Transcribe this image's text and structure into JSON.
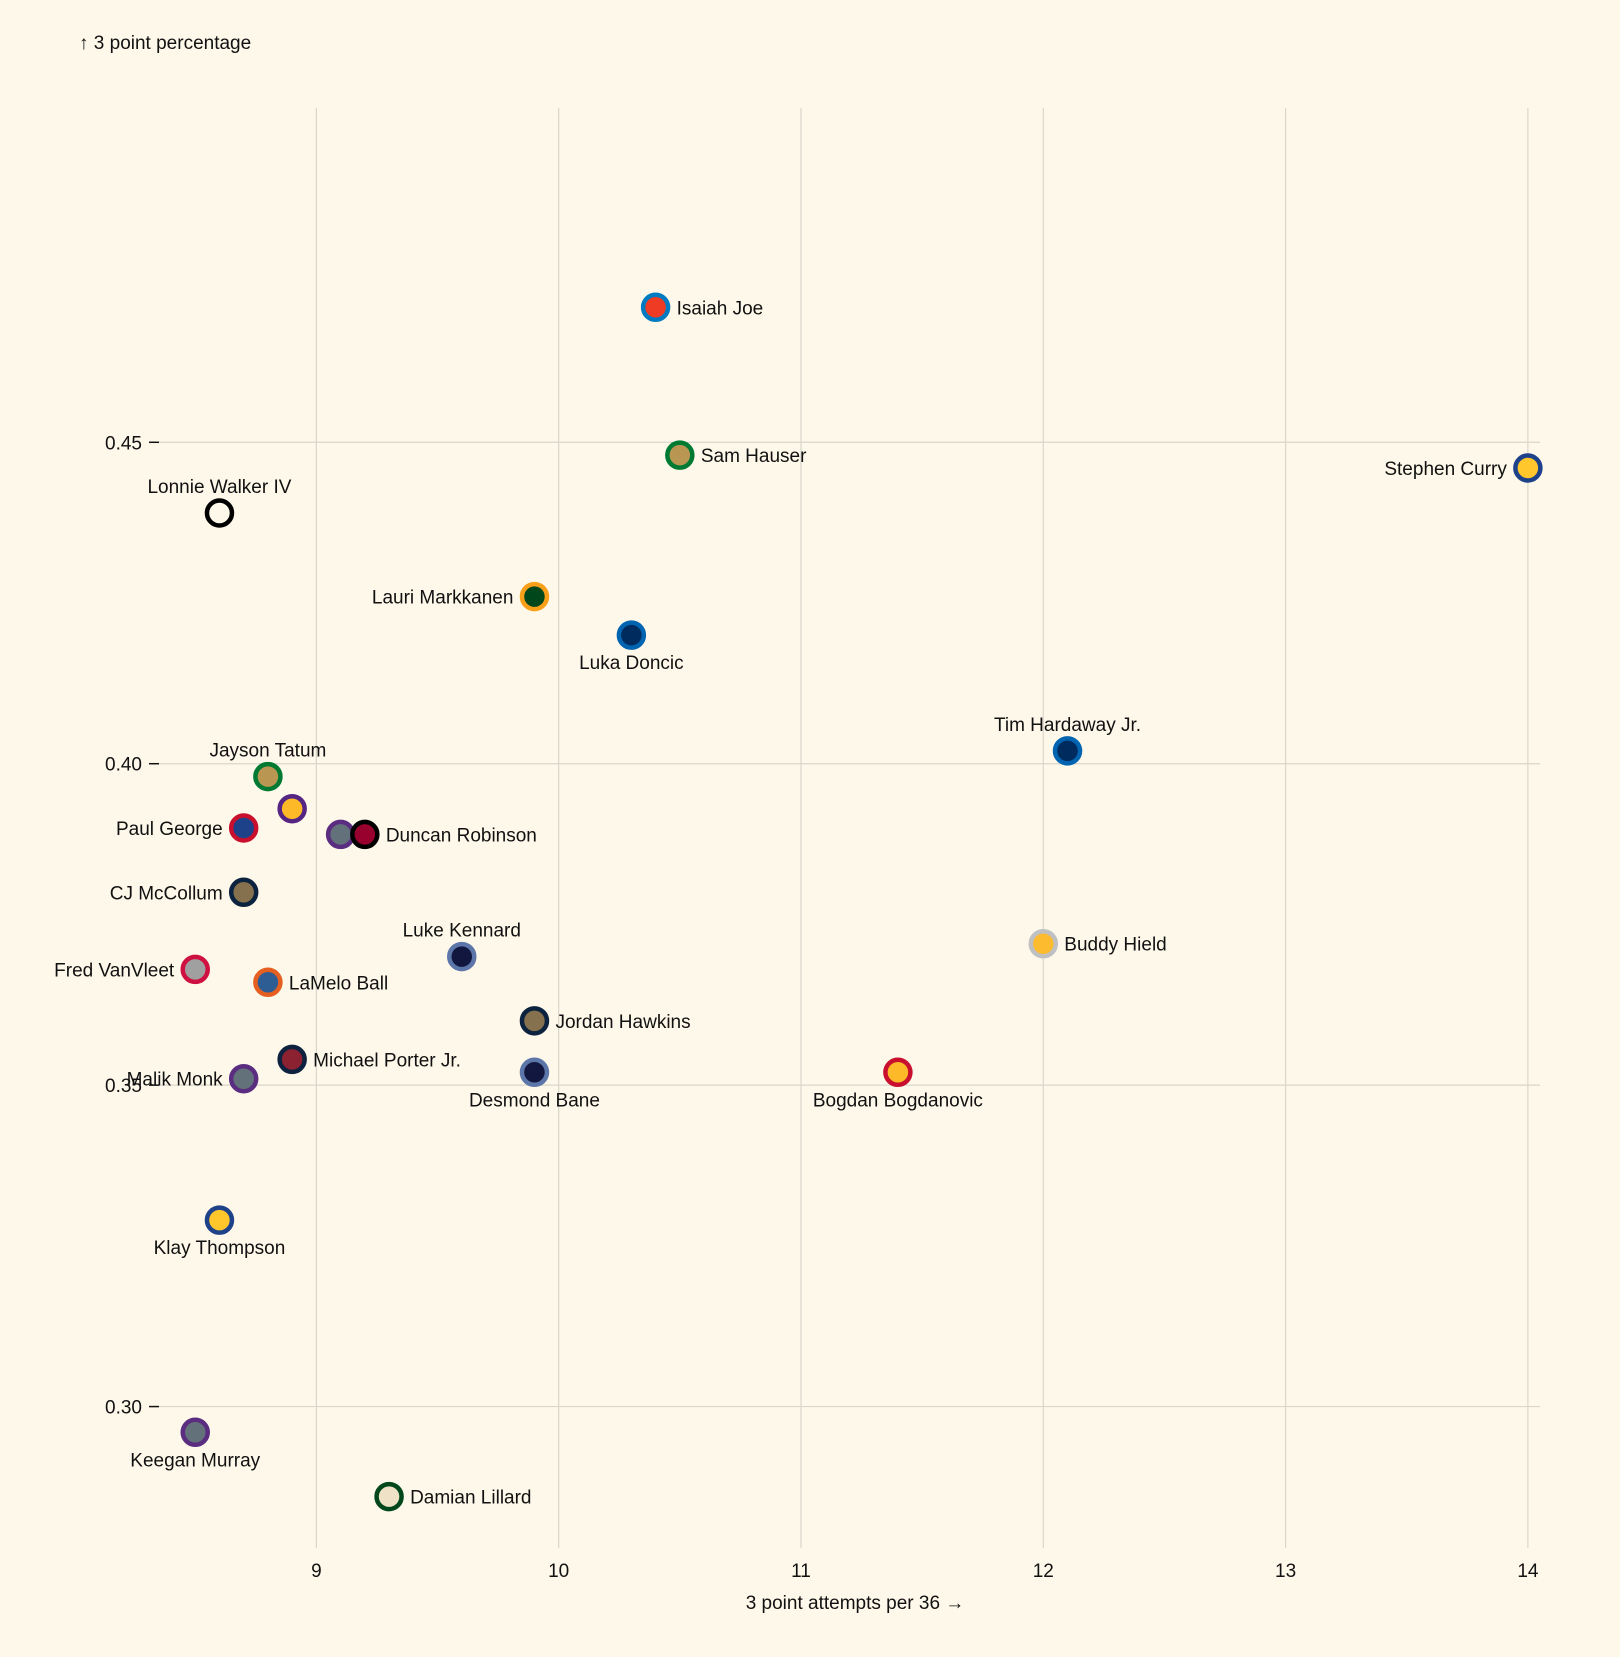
{
  "chart_data": {
    "type": "scatter",
    "title": "",
    "xlabel": "3 point attempts per 36 →",
    "ylabel": "↑ 3 point percentage",
    "xlim": [
      8.4,
      14.05
    ],
    "ylim": [
      0.278,
      0.502
    ],
    "x_ticks": [
      9,
      10,
      11,
      12,
      13,
      14
    ],
    "x_tick_labels": [
      "9",
      "10",
      "11",
      "12",
      "13",
      "14"
    ],
    "y_ticks": [
      0.3,
      0.35,
      0.4,
      0.45
    ],
    "y_tick_labels": [
      "0.30",
      "0.35",
      "0.40",
      "0.45"
    ],
    "grid": true,
    "legend": "none",
    "points": [
      {
        "label": "Isaiah Joe",
        "x": 10.4,
        "y": 0.471,
        "fill": "#ef3b24",
        "stroke": "#007ac1",
        "label_pos": "right"
      },
      {
        "label": "Sam Hauser",
        "x": 10.5,
        "y": 0.448,
        "fill": "#ba9653",
        "stroke": "#007a33",
        "label_pos": "right"
      },
      {
        "label": "Stephen Curry",
        "x": 14.0,
        "y": 0.446,
        "fill": "#ffc72c",
        "stroke": "#1d428a",
        "label_pos": "left"
      },
      {
        "label": "Lonnie Walker IV",
        "x": 8.6,
        "y": 0.439,
        "fill": "#fef8ea",
        "stroke": "#000000",
        "label_pos": "top"
      },
      {
        "label": "Lauri Markkanen",
        "x": 9.9,
        "y": 0.426,
        "fill": "#00471b",
        "stroke": "#f9a01b",
        "label_pos": "left"
      },
      {
        "label": "Luka Doncic",
        "x": 10.3,
        "y": 0.42,
        "fill": "#002b5e",
        "stroke": "#0064b1",
        "label_pos": "bottom"
      },
      {
        "label": "Tim Hardaway Jr.",
        "x": 12.1,
        "y": 0.402,
        "fill": "#002b5e",
        "stroke": "#0064b1",
        "label_pos": "top"
      },
      {
        "label": "Jayson Tatum",
        "x": 8.8,
        "y": 0.398,
        "fill": "#ba9653",
        "stroke": "#007a33",
        "label_pos": "top"
      },
      {
        "label": "",
        "x": 8.9,
        "y": 0.393,
        "fill": "#fdb927",
        "stroke": "#552583",
        "label_pos": "none"
      },
      {
        "label": "Paul George",
        "x": 8.7,
        "y": 0.39,
        "fill": "#1d428a",
        "stroke": "#c8102e",
        "label_pos": "left"
      },
      {
        "label": "",
        "x": 9.1,
        "y": 0.389,
        "fill": "#63727a",
        "stroke": "#5a2d81",
        "label_pos": "none"
      },
      {
        "label": "Duncan Robinson",
        "x": 9.2,
        "y": 0.389,
        "fill": "#98002e",
        "stroke": "#000000",
        "label_pos": "right"
      },
      {
        "label": "CJ McCollum",
        "x": 8.7,
        "y": 0.38,
        "fill": "#85714d",
        "stroke": "#0c2340",
        "label_pos": "left"
      },
      {
        "label": "Buddy Hield",
        "x": 12.0,
        "y": 0.372,
        "fill": "#fdbb30",
        "stroke": "#bec0c2",
        "label_pos": "right"
      },
      {
        "label": "Luke Kennard",
        "x": 9.6,
        "y": 0.37,
        "fill": "#12173f",
        "stroke": "#5d76a9",
        "label_pos": "top"
      },
      {
        "label": "Fred VanVleet",
        "x": 8.5,
        "y": 0.368,
        "fill": "#a0a0a0",
        "stroke": "#ce1141",
        "label_pos": "left"
      },
      {
        "label": "LaMelo Ball",
        "x": 8.8,
        "y": 0.366,
        "fill": "#2e5d93",
        "stroke": "#e56020",
        "label_pos": "right"
      },
      {
        "label": "Jordan Hawkins",
        "x": 9.9,
        "y": 0.36,
        "fill": "#85714d",
        "stroke": "#0c2340",
        "label_pos": "right"
      },
      {
        "label": "Michael Porter Jr.",
        "x": 8.9,
        "y": 0.354,
        "fill": "#8b2131",
        "stroke": "#0e2240",
        "label_pos": "right"
      },
      {
        "label": "Desmond Bane",
        "x": 9.9,
        "y": 0.352,
        "fill": "#12173f",
        "stroke": "#5d76a9",
        "label_pos": "bottom"
      },
      {
        "label": "Bogdan Bogdanovic",
        "x": 11.4,
        "y": 0.352,
        "fill": "#fdb927",
        "stroke": "#c8102e",
        "label_pos": "bottom"
      },
      {
        "label": "Malik Monk",
        "x": 8.7,
        "y": 0.351,
        "fill": "#63727a",
        "stroke": "#5a2d81",
        "label_pos": "left"
      },
      {
        "label": "Klay Thompson",
        "x": 8.6,
        "y": 0.329,
        "fill": "#ffc72c",
        "stroke": "#1d428a",
        "label_pos": "bottom"
      },
      {
        "label": "Keegan Murray",
        "x": 8.5,
        "y": 0.296,
        "fill": "#63727a",
        "stroke": "#5a2d81",
        "label_pos": "bottom"
      },
      {
        "label": "Damian Lillard",
        "x": 9.3,
        "y": 0.286,
        "fill": "#eee1c6",
        "stroke": "#00471b",
        "label_pos": "right"
      }
    ]
  }
}
